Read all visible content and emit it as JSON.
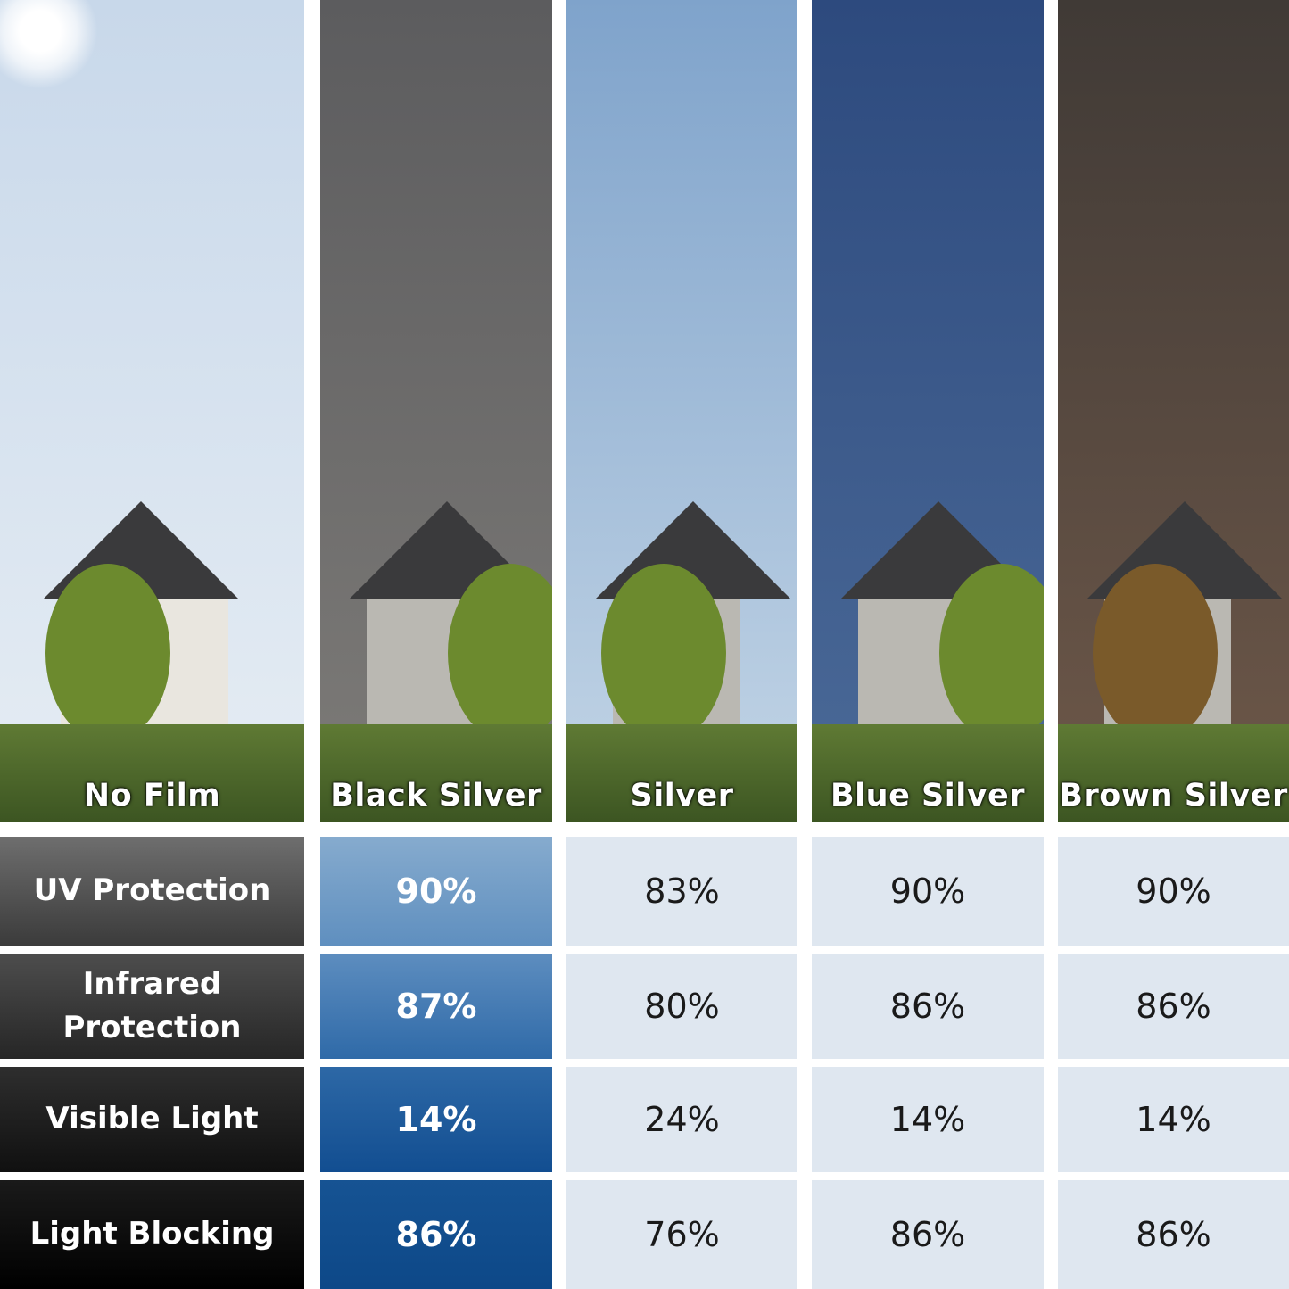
{
  "films": [
    {
      "name": "No Film",
      "sky": [
        "#c8d8ea",
        "#e6edf4"
      ],
      "tint": "none"
    },
    {
      "name": "Black Silver",
      "sky": [
        "#5c5c5e",
        "#7d7b78"
      ],
      "tint": "gray"
    },
    {
      "name": "Silver",
      "sky": [
        "#7fa3cb",
        "#c3d5e6"
      ],
      "tint": "light-blue"
    },
    {
      "name": "Blue Silver",
      "sky": [
        "#2d4a7e",
        "#4b6a98"
      ],
      "tint": "blue"
    },
    {
      "name": "Brown Silver",
      "sky": [
        "#403a36",
        "#6e5849"
      ],
      "tint": "brown"
    }
  ],
  "rows": [
    {
      "label": "UV Protection",
      "values": [
        "90%",
        "83%",
        "90%",
        "90%"
      ]
    },
    {
      "label": "Infrared Protection",
      "values": [
        "87%",
        "80%",
        "86%",
        "86%"
      ]
    },
    {
      "label": "Visible Light",
      "values": [
        "14%",
        "24%",
        "14%",
        "14%"
      ]
    },
    {
      "label": "Light Blocking",
      "values": [
        "86%",
        "76%",
        "86%",
        "86%"
      ]
    }
  ],
  "colors": {
    "label_column": [
      [
        "#6e6e6e",
        "#3b3b3b"
      ],
      [
        "#4d4d4d",
        "#262626"
      ],
      [
        "#2e2e2e",
        "#101010"
      ],
      [
        "#1a1a1a",
        "#000000"
      ]
    ],
    "highlight_column": [
      [
        "#86abce",
        "#5f8fbf"
      ],
      [
        "#5d8dbf",
        "#2f6aa8"
      ],
      [
        "#2d68a6",
        "#124e91"
      ],
      [
        "#165393",
        "#0d4888"
      ]
    ],
    "light_cell": "#dfe7f0"
  }
}
